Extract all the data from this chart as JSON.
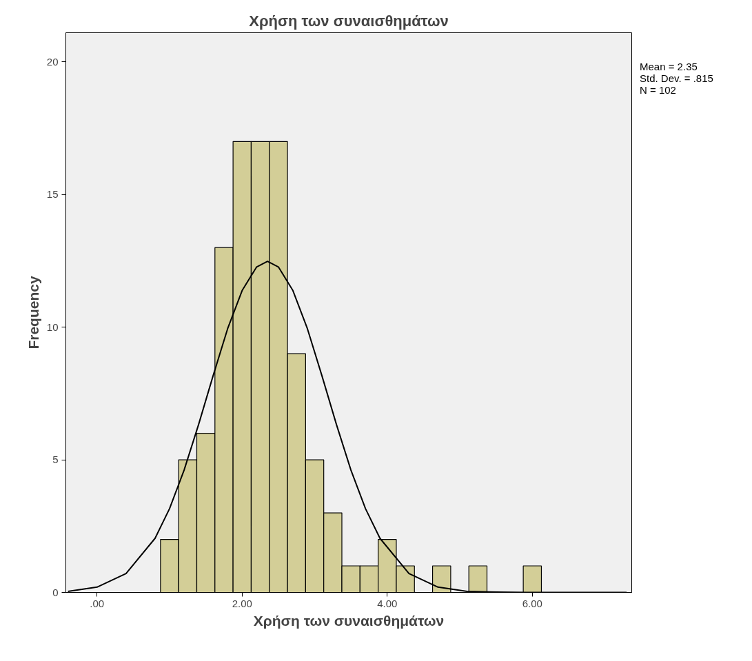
{
  "chart_data": {
    "type": "histogram",
    "title": "Χρήση των συναισθημάτων",
    "xlabel": "Χρήση των συναισθημάτων",
    "ylabel": "Frequency",
    "series": [
      {
        "color": "#d3ce97",
        "bins": [
          0.875,
          1.125,
          1.375,
          1.625,
          1.875,
          2.125,
          2.375,
          2.625,
          2.875,
          3.125,
          3.375,
          3.625,
          3.875,
          4.125,
          4.375,
          4.625,
          4.875,
          5.125,
          5.375,
          5.625,
          5.875,
          6.125
        ],
        "values": [
          2,
          5,
          6,
          13,
          17,
          17,
          17,
          9,
          5,
          3,
          1,
          1,
          2,
          1,
          0,
          1,
          0,
          1,
          0,
          0,
          1
        ]
      },
      {
        "type": "line",
        "color": "#000000",
        "x": [
          -0.4,
          0.0,
          0.4,
          0.8,
          1.0,
          1.2,
          1.4,
          1.6,
          1.8,
          2.0,
          2.2,
          2.35,
          2.5,
          2.7,
          2.9,
          3.1,
          3.3,
          3.5,
          3.7,
          3.9,
          4.3,
          4.7,
          5.1,
          5.5,
          6.0,
          7.3
        ],
        "values": [
          0.04,
          0.2,
          0.71,
          2.04,
          3.16,
          4.61,
          6.33,
          8.17,
          9.94,
          11.38,
          12.27,
          12.48,
          12.27,
          11.38,
          9.94,
          8.17,
          6.33,
          4.61,
          3.16,
          2.04,
          0.71,
          0.2,
          0.04,
          0.01,
          0,
          0
        ]
      }
    ],
    "xlim": [
      -0.43,
      7.37
    ],
    "ylim": [
      0,
      21.1
    ],
    "xticks": [
      {
        "value": 0,
        "label": ".00"
      },
      {
        "value": 2,
        "label": "2.00"
      },
      {
        "value": 4,
        "label": "4.00"
      },
      {
        "value": 6,
        "label": "6.00"
      }
    ],
    "yticks": [
      0,
      5,
      10,
      15,
      20
    ],
    "annotations": [
      "Mean = 2.35",
      "Std. Dev. = .815",
      "N = 102"
    ],
    "grid": false
  }
}
